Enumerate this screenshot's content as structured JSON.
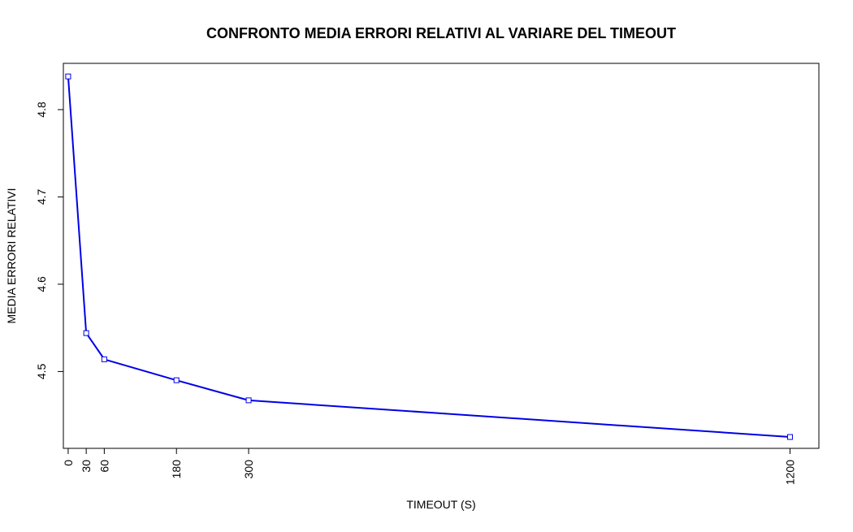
{
  "chart_data": {
    "type": "line",
    "title": "CONFRONTO MEDIA ERRORI RELATIVI AL VARIARE DEL TIMEOUT",
    "xlabel": "TIMEOUT (S)",
    "ylabel": "MEDIA ERRORI RELATIVI",
    "x_ticks": [
      "0",
      "30",
      "60",
      "180",
      "300",
      "1200"
    ],
    "y_ticks": [
      "4.5",
      "4.6",
      "4.7",
      "4.8"
    ],
    "xlim": [
      -8,
      1248
    ],
    "ylim": [
      4.412,
      4.853
    ],
    "grid": false,
    "series": [
      {
        "color": "#0000e6",
        "marker": "square",
        "x": [
          0,
          30,
          60,
          180,
          300,
          1200
        ],
        "y": [
          4.838,
          4.544,
          4.514,
          4.49,
          4.467,
          4.425
        ]
      }
    ]
  }
}
